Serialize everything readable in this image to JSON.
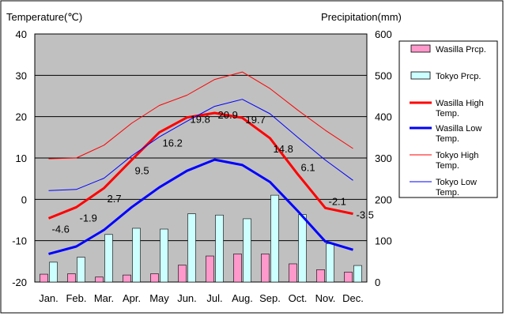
{
  "chart_data": {
    "type": "bar",
    "left_axis_title": "Temperature(℃)",
    "right_axis_title": "Precipitation(mm)",
    "y_left_lim": [
      -20,
      40
    ],
    "y_right_lim": [
      0,
      600
    ],
    "y_left_ticks": [
      "40",
      "30",
      "20",
      "10",
      "0",
      "-10",
      "-20"
    ],
    "y_right_ticks": [
      "600",
      "500",
      "400",
      "300",
      "200",
      "100",
      "0"
    ],
    "categories": [
      "Jan.",
      "Feb.",
      "Mar.",
      "Apr.",
      "May",
      "Jun.",
      "Jul.",
      "Aug.",
      "Sep.",
      "Oct.",
      "Nov.",
      "Dec."
    ],
    "grid": true,
    "legend_position": "right",
    "bar_series": [
      {
        "name": "Wasilla Prcp.",
        "color": "#ff99cc",
        "values": [
          19,
          20,
          12,
          17,
          20,
          41,
          63,
          68,
          68,
          44,
          30,
          24
        ],
        "axis": "right"
      },
      {
        "name": "Tokyo Prcp.",
        "color": "#ccffff",
        "values": [
          48,
          60,
          115,
          130,
          128,
          165,
          162,
          153,
          210,
          163,
          93,
          40
        ],
        "axis": "right"
      }
    ],
    "line_series": [
      {
        "name": "Wasilla High Temp.",
        "color": "#ff0000",
        "width": 3,
        "values": [
          -4.6,
          -1.9,
          2.7,
          9.5,
          16.2,
          19.8,
          20.9,
          19.7,
          14.8,
          6.1,
          -2.1,
          -3.5
        ],
        "labels": [
          "-4.6",
          "-1.9",
          "2.7",
          "9.5",
          "16.2",
          "19.8",
          "20.9",
          "19.7",
          "14.8",
          "6.1",
          "-2.1",
          "-3.5"
        ]
      },
      {
        "name": "Wasilla Low Temp.",
        "color": "#0000ff",
        "width": 3,
        "values": [
          -13.2,
          -11.4,
          -7.4,
          -1.9,
          2.9,
          6.9,
          9.6,
          8.3,
          4.2,
          -2.8,
          -10.2,
          -12.2
        ]
      },
      {
        "name": "Tokyo High Temp.",
        "color": "#ff0000",
        "width": 1,
        "values": [
          9.8,
          10.0,
          13.1,
          18.4,
          22.7,
          25.2,
          29.0,
          30.8,
          26.8,
          21.6,
          16.7,
          12.3
        ]
      },
      {
        "name": "Tokyo Low Temp.",
        "color": "#0000ff",
        "width": 1,
        "values": [
          2.1,
          2.4,
          5.1,
          10.5,
          15.1,
          18.9,
          22.5,
          24.2,
          20.7,
          15.0,
          9.5,
          4.6
        ]
      }
    ],
    "legend": [
      {
        "label": "Wasilla Prcp.",
        "kind": "bar",
        "color": "#ff99cc"
      },
      {
        "label": "Tokyo Prcp.",
        "kind": "bar",
        "color": "#ccffff"
      },
      {
        "label": "Wasilla High Temp.",
        "kind": "line",
        "color": "#ff0000",
        "width": 3
      },
      {
        "label": "Wasilla Low Temp.",
        "kind": "line",
        "color": "#0000ff",
        "width": 3
      },
      {
        "label": "Tokyo High Temp.",
        "kind": "line",
        "color": "#ff0000",
        "width": 1
      },
      {
        "label": "Tokyo Low Temp.",
        "kind": "line",
        "color": "#0000ff",
        "width": 1
      }
    ]
  }
}
